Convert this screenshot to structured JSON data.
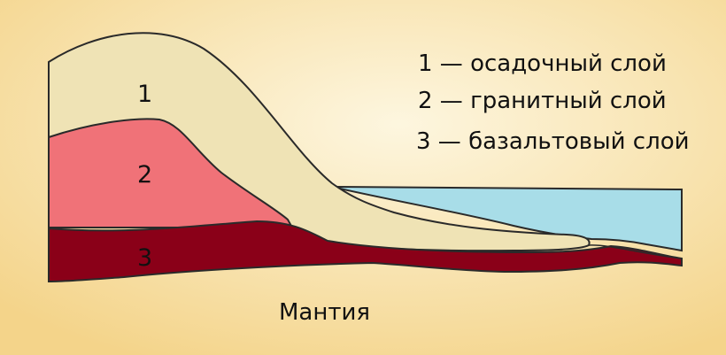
{
  "layers": [
    {
      "number": "1",
      "name": "осадочный слой",
      "color": "#efe3b5"
    },
    {
      "number": "2",
      "name": "гранитный слой",
      "color": "#f07278"
    },
    {
      "number": "3",
      "name": "базальтовый слой",
      "color": "#8a0018"
    }
  ],
  "legend": {
    "item1": "1 — осадочный слой",
    "item2": "2 — гранитный слой",
    "item3": "3 — базальтовый слой"
  },
  "labels": {
    "layer1": "1",
    "layer2": "2",
    "layer3": "3"
  },
  "caption": "Мантия",
  "colors": {
    "background_center": "#fdf6df",
    "background_edge": "#f4d48a",
    "ocean": "#a8dde8",
    "outline": "#2a2a2a"
  }
}
